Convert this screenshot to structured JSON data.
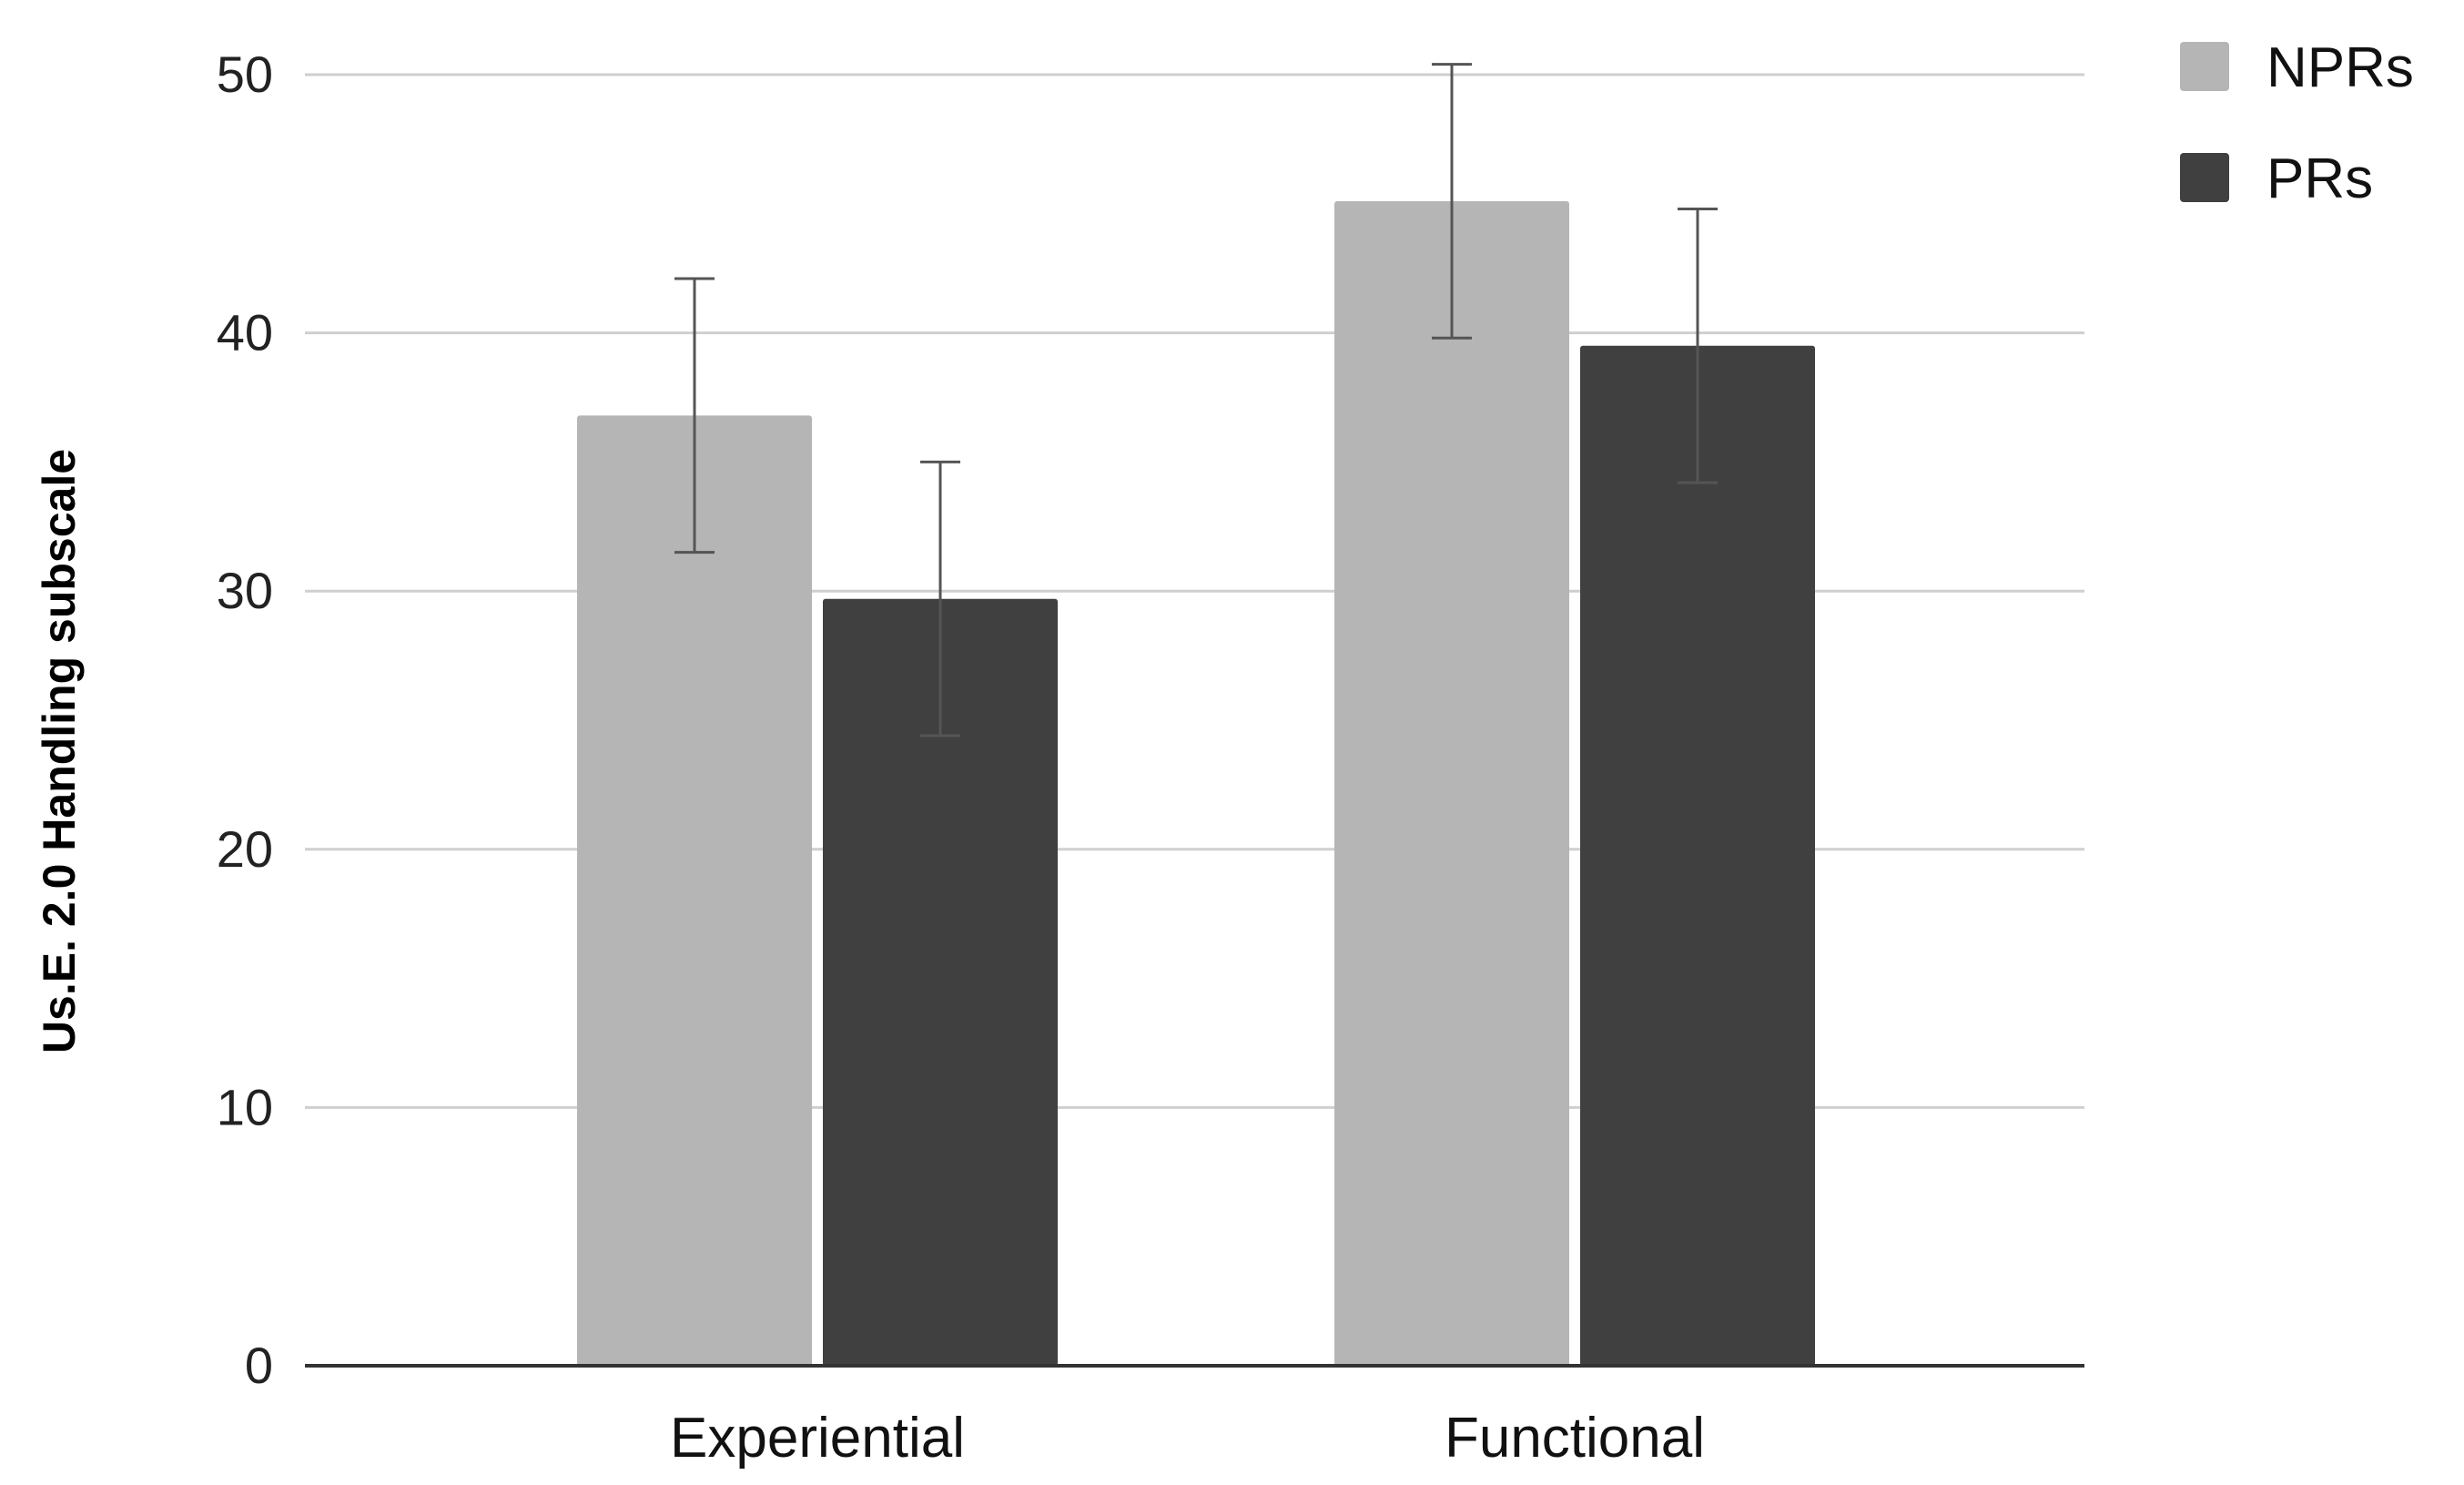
{
  "chart_data": {
    "type": "bar",
    "title": "",
    "xlabel": "",
    "ylabel": "Us.E. 2.0 Handling subscale",
    "ylim": [
      0,
      50
    ],
    "yticks": [
      0,
      10,
      20,
      30,
      40,
      50
    ],
    "grid": true,
    "legend_position": "top-right",
    "categories": [
      "Experiential",
      "Functional"
    ],
    "series": [
      {
        "name": "NPRs",
        "color": "#b5b5b5",
        "values": [
          36.8,
          45.1
        ],
        "error": [
          5.3,
          5.3
        ]
      },
      {
        "name": "PRs",
        "color": "#404040",
        "values": [
          29.7,
          39.5
        ],
        "error": [
          5.3,
          5.3
        ]
      }
    ]
  }
}
